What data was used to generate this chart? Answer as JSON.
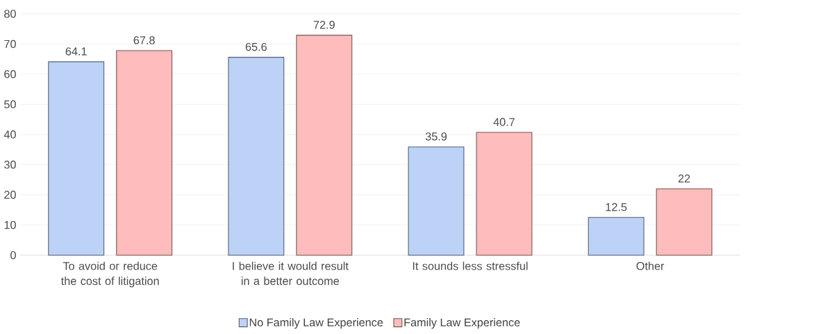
{
  "chart_data": {
    "type": "bar",
    "categories": [
      "To avoid or reduce the cost of litigation",
      "I believe it would result in a better outcome",
      "It sounds less stressful",
      "Other"
    ],
    "series": [
      {
        "name": "No Family Law Experience",
        "color": "#bcd2f7",
        "values": [
          64.1,
          65.6,
          35.9,
          12.5
        ]
      },
      {
        "name": "Family Law Experience",
        "color": "#ffbcbc",
        "values": [
          67.8,
          72.9,
          40.7,
          22
        ]
      }
    ],
    "ylim": [
      0,
      80
    ],
    "yticks": [
      0,
      10,
      20,
      30,
      40,
      50,
      60,
      70,
      80
    ],
    "grid": "y",
    "legend": "bottom",
    "data_labels": true
  }
}
